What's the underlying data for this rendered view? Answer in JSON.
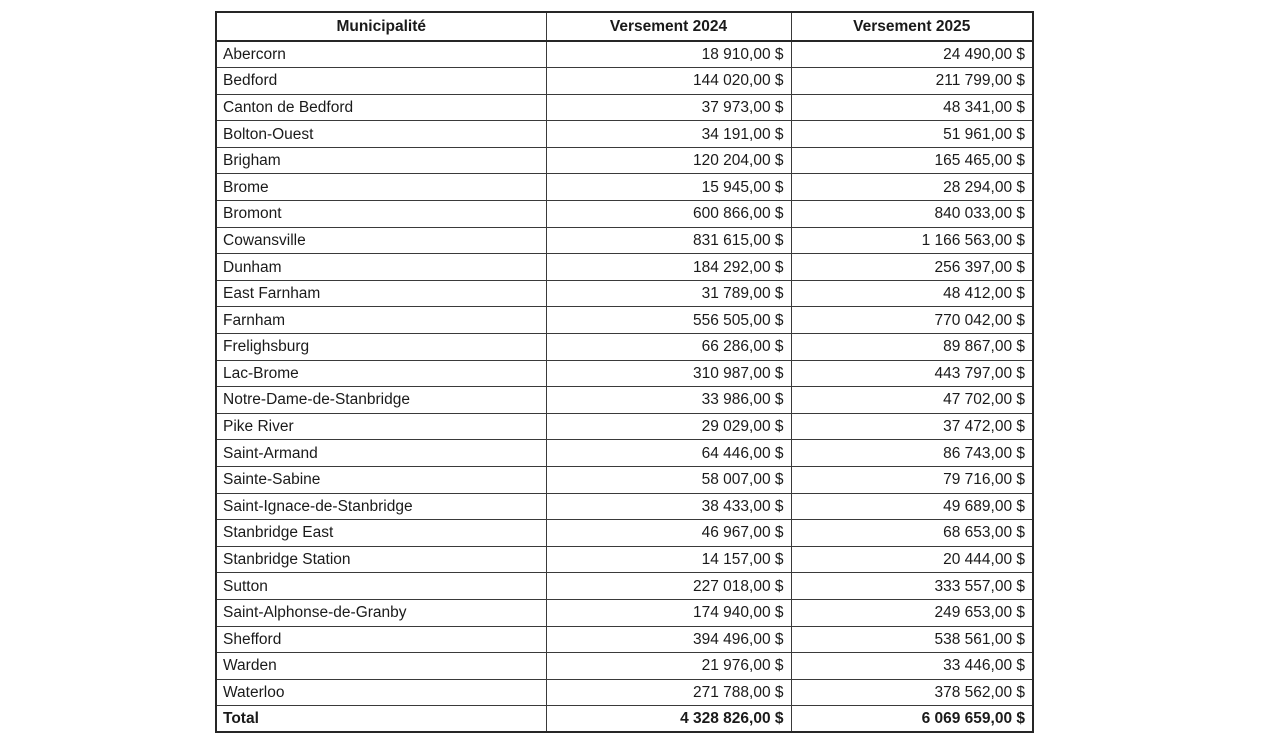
{
  "table": {
    "columns": [
      {
        "label": "Municipalité"
      },
      {
        "label": "Versement 2024"
      },
      {
        "label": "Versement 2025"
      }
    ],
    "rows": [
      {
        "name": "Abercorn",
        "v2024": "18 910,00 $",
        "v2025": "24 490,00 $"
      },
      {
        "name": "Bedford",
        "v2024": "144 020,00 $",
        "v2025": "211 799,00 $"
      },
      {
        "name": "Canton de Bedford",
        "v2024": "37 973,00 $",
        "v2025": "48 341,00 $"
      },
      {
        "name": "Bolton-Ouest",
        "v2024": "34 191,00 $",
        "v2025": "51 961,00 $"
      },
      {
        "name": "Brigham",
        "v2024": "120 204,00 $",
        "v2025": "165 465,00 $"
      },
      {
        "name": "Brome",
        "v2024": "15 945,00 $",
        "v2025": "28 294,00 $"
      },
      {
        "name": "Bromont",
        "v2024": "600 866,00 $",
        "v2025": "840 033,00 $"
      },
      {
        "name": "Cowansville",
        "v2024": "831 615,00 $",
        "v2025": "1 166 563,00 $"
      },
      {
        "name": "Dunham",
        "v2024": "184 292,00 $",
        "v2025": "256 397,00 $"
      },
      {
        "name": "East Farnham",
        "v2024": "31 789,00 $",
        "v2025": "48 412,00 $"
      },
      {
        "name": "Farnham",
        "v2024": "556 505,00 $",
        "v2025": "770 042,00 $"
      },
      {
        "name": "Frelighsburg",
        "v2024": "66 286,00 $",
        "v2025": "89 867,00 $"
      },
      {
        "name": "Lac-Brome",
        "v2024": "310 987,00 $",
        "v2025": "443 797,00 $"
      },
      {
        "name": "Notre-Dame-de-Stanbridge",
        "v2024": "33 986,00 $",
        "v2025": "47 702,00 $"
      },
      {
        "name": "Pike River",
        "v2024": "29 029,00 $",
        "v2025": "37 472,00 $"
      },
      {
        "name": "Saint-Armand",
        "v2024": "64 446,00 $",
        "v2025": "86 743,00 $"
      },
      {
        "name": "Sainte-Sabine",
        "v2024": "58 007,00 $",
        "v2025": "79 716,00 $"
      },
      {
        "name": "Saint-Ignace-de-Stanbridge",
        "v2024": "38 433,00 $",
        "v2025": "49 689,00 $"
      },
      {
        "name": "Stanbridge East",
        "v2024": "46 967,00 $",
        "v2025": "68 653,00 $"
      },
      {
        "name": "Stanbridge Station",
        "v2024": "14 157,00 $",
        "v2025": "20 444,00 $"
      },
      {
        "name": "Sutton",
        "v2024": "227 018,00 $",
        "v2025": "333 557,00 $"
      },
      {
        "name": "Saint-Alphonse-de-Granby",
        "v2024": "174 940,00 $",
        "v2025": "249 653,00 $"
      },
      {
        "name": "Shefford",
        "v2024": "394 496,00 $",
        "v2025": "538 561,00 $"
      },
      {
        "name": "Warden",
        "v2024": "21 976,00 $",
        "v2025": "33 446,00 $"
      },
      {
        "name": "Waterloo",
        "v2024": "271 788,00 $",
        "v2025": "378 562,00 $"
      }
    ],
    "total": {
      "label": "Total",
      "v2024": "4 328 826,00 $",
      "v2025": "6 069 659,00 $"
    }
  },
  "colors": {
    "border": "#3a3a3a",
    "outer_border": "#262626",
    "text": "#1a1a1a",
    "background": "#ffffff"
  }
}
